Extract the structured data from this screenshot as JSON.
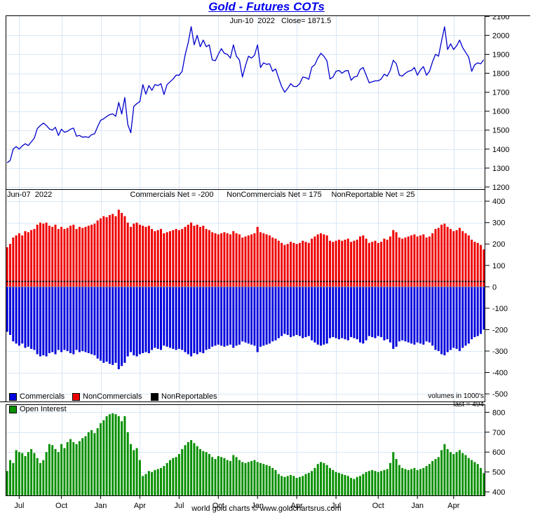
{
  "title": "Gold - Futures COTs",
  "footer": "world gold charts © www.goldchartsrus.com",
  "colors": {
    "title": "#0000ee",
    "price_line": "#0000cc",
    "commercials": "#0000dd",
    "noncommercials": "#ee0000",
    "nonreportables": "#000000",
    "open_interest": "#089000",
    "grid": "#d9e7f5",
    "zero_line": "#999999",
    "frame": "#000000"
  },
  "x_axis": {
    "tick_labels": [
      "Jul",
      "Oct",
      "Jan",
      "Apr",
      "Jul",
      "Oct",
      "Jan",
      "Apr",
      "Jul",
      "Oct",
      "Jan",
      "Apr"
    ],
    "tick_indices": [
      4,
      18,
      31,
      44,
      57,
      70,
      83,
      96,
      109,
      123,
      136,
      148
    ],
    "n_points": 159
  },
  "price_panel": {
    "annotation": "Jun-10  2022   Close= 1871.5"
  },
  "cot_panel": {
    "date_label": "Jun-07  2022",
    "net_labels": [
      "Commercials Net = -200",
      "NonCommercials Net = 175",
      "NonReportable Net = 25"
    ],
    "volumes_note": "volumes in 1000's"
  },
  "oi_panel": {
    "last_note": "last = 494",
    "legend_label": "Open Interest"
  },
  "legend": {
    "items": [
      {
        "label": "Commercials",
        "color": "#0000dd"
      },
      {
        "label": "NonCommercials",
        "color": "#ee0000"
      },
      {
        "label": "NonReportables",
        "color": "#000000"
      }
    ]
  },
  "chart_data": [
    {
      "type": "line",
      "name": "gold-price-weekly-close",
      "ylabel": "price (USD)",
      "ylim": [
        1185,
        2105
      ],
      "yticks": [
        1200,
        1300,
        1400,
        1500,
        1600,
        1700,
        1800,
        1900,
        2000,
        2100
      ],
      "grid": true,
      "values": [
        1328,
        1340,
        1400,
        1413,
        1400,
        1417,
        1428,
        1419,
        1438,
        1458,
        1508,
        1524,
        1537,
        1525,
        1506,
        1500,
        1515,
        1472,
        1505,
        1489,
        1494,
        1505,
        1511,
        1468,
        1472,
        1463,
        1465,
        1461,
        1476,
        1481,
        1518,
        1552,
        1560,
        1572,
        1582,
        1586,
        1573,
        1646,
        1585,
        1672,
        1530,
        1486,
        1625,
        1640,
        1650,
        1740,
        1690,
        1735,
        1710,
        1740,
        1735,
        1745,
        1688,
        1740,
        1755,
        1770,
        1790,
        1790,
        1810,
        1897,
        1960,
        2046,
        1950,
        2000,
        1940,
        1975,
        1940,
        1950,
        1870,
        1866,
        1900,
        1930,
        1905,
        1900,
        1880,
        1950,
        1890,
        1870,
        1780,
        1840,
        1890,
        1880,
        1895,
        1950,
        1830,
        1855,
        1847,
        1850,
        1810,
        1823,
        1775,
        1730,
        1700,
        1720,
        1745,
        1730,
        1730,
        1745,
        1780,
        1777,
        1768,
        1832,
        1845,
        1880,
        1905,
        1890,
        1865,
        1770,
        1780,
        1810,
        1815,
        1800,
        1812,
        1815,
        1763,
        1780,
        1784,
        1820,
        1830,
        1790,
        1750,
        1755,
        1760,
        1760,
        1770,
        1795,
        1785,
        1815,
        1868,
        1850,
        1790,
        1785,
        1800,
        1810,
        1815,
        1830,
        1790,
        1818,
        1835,
        1790,
        1810,
        1860,
        1900,
        1890,
        1970,
        2045,
        1925,
        1955,
        1925,
        1945,
        1975,
        1935,
        1910,
        1885,
        1810,
        1845,
        1855,
        1850,
        1871.5
      ]
    },
    {
      "type": "bar",
      "name": "cot-net-positions",
      "ylabel": "net contracts (1000's)",
      "ylim": [
        -539,
        456
      ],
      "yticks": [
        400,
        300,
        200,
        100,
        0,
        -100,
        -200,
        -300,
        -400,
        -500
      ],
      "grid": true,
      "series": [
        {
          "name": "NonCommercials",
          "values": [
            185,
            200,
            230,
            240,
            250,
            240,
            260,
            255,
            265,
            270,
            290,
            300,
            295,
            300,
            285,
            280,
            290,
            270,
            280,
            270,
            275,
            285,
            290,
            270,
            280,
            275,
            280,
            285,
            290,
            295,
            310,
            320,
            330,
            325,
            335,
            340,
            330,
            360,
            345,
            330,
            300,
            280,
            295,
            300,
            290,
            285,
            280,
            285,
            270,
            260,
            265,
            270,
            250,
            255,
            260,
            265,
            270,
            265,
            270,
            280,
            290,
            300,
            285,
            290,
            280,
            285,
            270,
            265,
            255,
            250,
            245,
            250,
            255,
            250,
            245,
            260,
            250,
            245,
            230,
            235,
            240,
            245,
            250,
            280,
            255,
            250,
            245,
            240,
            230,
            225,
            215,
            205,
            195,
            200,
            210,
            205,
            200,
            205,
            215,
            210,
            205,
            225,
            235,
            245,
            250,
            245,
            240,
            215,
            210,
            215,
            220,
            215,
            220,
            225,
            210,
            215,
            220,
            235,
            240,
            225,
            205,
            210,
            215,
            205,
            210,
            225,
            220,
            235,
            265,
            255,
            230,
            225,
            230,
            235,
            240,
            245,
            235,
            240,
            245,
            230,
            235,
            250,
            270,
            275,
            290,
            295,
            280,
            270,
            260,
            265,
            275,
            260,
            250,
            240,
            220,
            210,
            205,
            195,
            175
          ]
        },
        {
          "name": "Commercials",
          "values": [
            -210,
            -225,
            -255,
            -265,
            -275,
            -265,
            -285,
            -280,
            -290,
            -295,
            -315,
            -325,
            -320,
            -325,
            -310,
            -305,
            -315,
            -295,
            -305,
            -295,
            -300,
            -310,
            -315,
            -295,
            -305,
            -300,
            -305,
            -310,
            -315,
            -320,
            -335,
            -345,
            -355,
            -350,
            -360,
            -365,
            -355,
            -385,
            -370,
            -355,
            -325,
            -305,
            -320,
            -325,
            -315,
            -310,
            -305,
            -310,
            -295,
            -285,
            -290,
            -295,
            -275,
            -280,
            -285,
            -290,
            -295,
            -290,
            -295,
            -305,
            -315,
            -325,
            -310,
            -315,
            -305,
            -310,
            -295,
            -290,
            -280,
            -275,
            -270,
            -275,
            -280,
            -275,
            -270,
            -285,
            -275,
            -270,
            -255,
            -260,
            -265,
            -270,
            -275,
            -305,
            -280,
            -275,
            -270,
            -265,
            -255,
            -250,
            -240,
            -230,
            -220,
            -225,
            -235,
            -230,
            -225,
            -230,
            -240,
            -235,
            -230,
            -250,
            -260,
            -270,
            -275,
            -270,
            -265,
            -240,
            -235,
            -240,
            -245,
            -240,
            -245,
            -250,
            -235,
            -240,
            -245,
            -260,
            -265,
            -250,
            -230,
            -235,
            -240,
            -230,
            -235,
            -250,
            -245,
            -260,
            -290,
            -280,
            -255,
            -250,
            -255,
            -260,
            -265,
            -270,
            -260,
            -265,
            -270,
            -255,
            -260,
            -275,
            -295,
            -300,
            -315,
            -320,
            -305,
            -295,
            -285,
            -290,
            -300,
            -285,
            -275,
            -265,
            -245,
            -235,
            -230,
            -220,
            -200
          ]
        },
        {
          "name": "NonReportables",
          "constant": 25
        }
      ]
    },
    {
      "type": "bar",
      "name": "open-interest",
      "ylabel": "open interest (1000's)",
      "ylim": [
        379,
        840
      ],
      "yticks": [
        400,
        500,
        600,
        700,
        800
      ],
      "grid": true,
      "last": 494,
      "values": [
        505,
        560,
        545,
        610,
        600,
        595,
        580,
        600,
        615,
        595,
        570,
        545,
        560,
        600,
        640,
        635,
        615,
        600,
        640,
        620,
        650,
        665,
        650,
        640,
        655,
        670,
        680,
        700,
        710,
        695,
        720,
        745,
        760,
        780,
        790,
        795,
        790,
        780,
        755,
        780,
        700,
        640,
        610,
        620,
        560,
        480,
        490,
        505,
        500,
        510,
        515,
        520,
        530,
        545,
        560,
        570,
        575,
        590,
        615,
        635,
        650,
        660,
        645,
        630,
        615,
        605,
        600,
        590,
        575,
        565,
        580,
        575,
        570,
        560,
        555,
        585,
        575,
        560,
        550,
        545,
        550,
        555,
        560,
        550,
        545,
        540,
        535,
        530,
        520,
        510,
        490,
        480,
        475,
        480,
        485,
        480,
        470,
        475,
        480,
        490,
        495,
        505,
        520,
        540,
        550,
        545,
        535,
        520,
        510,
        500,
        495,
        490,
        485,
        480,
        470,
        465,
        475,
        480,
        490,
        500,
        505,
        510,
        505,
        500,
        505,
        510,
        515,
        545,
        600,
        565,
        535,
        520,
        515,
        510,
        515,
        520,
        510,
        515,
        520,
        530,
        540,
        555,
        565,
        575,
        610,
        640,
        615,
        600,
        590,
        600,
        610,
        595,
        585,
        570,
        560,
        550,
        540,
        520,
        494
      ]
    }
  ]
}
